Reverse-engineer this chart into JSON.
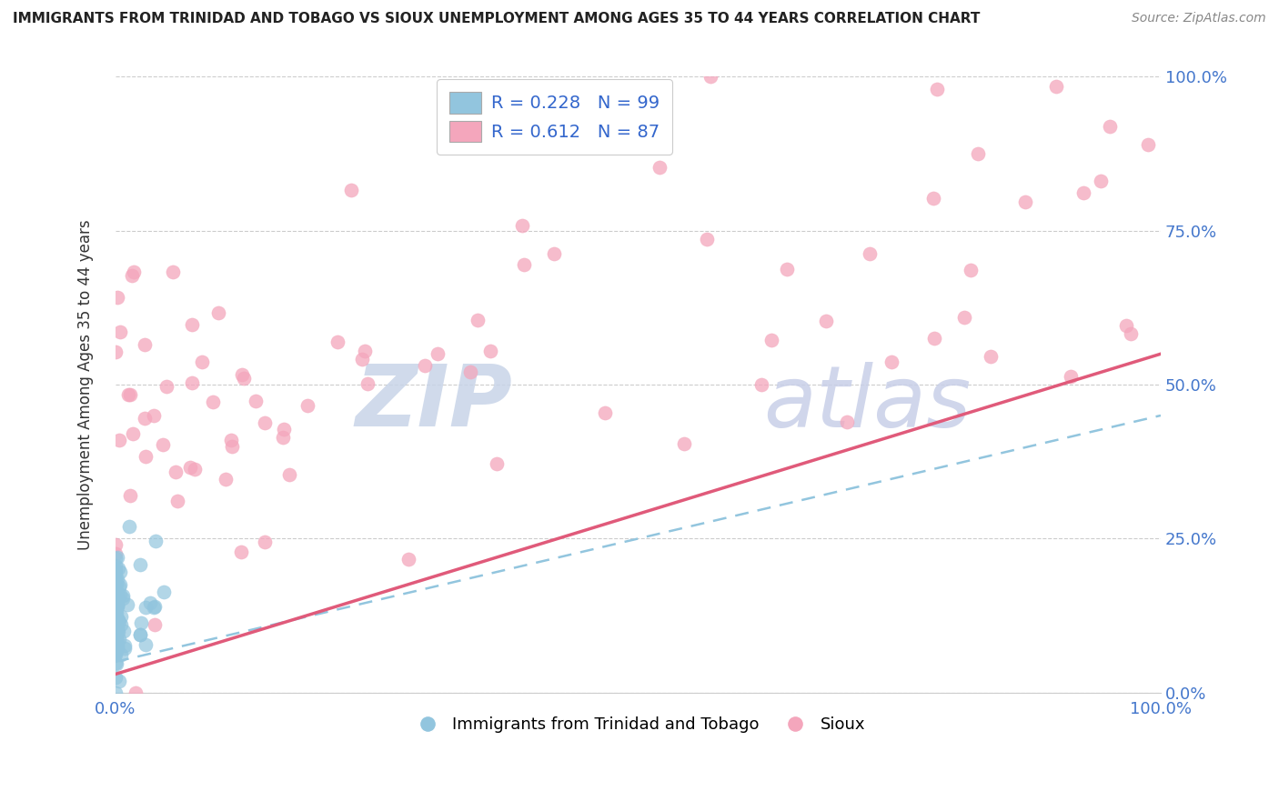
{
  "title": "IMMIGRANTS FROM TRINIDAD AND TOBAGO VS SIOUX UNEMPLOYMENT AMONG AGES 35 TO 44 YEARS CORRELATION CHART",
  "source": "Source: ZipAtlas.com",
  "ylabel": "Unemployment Among Ages 35 to 44 years",
  "legend1_R": "0.228",
  "legend1_N": "99",
  "legend2_R": "0.612",
  "legend2_N": "87",
  "legend_bottom1": "Immigrants from Trinidad and Tobago",
  "legend_bottom2": "Sioux",
  "color_blue": "#92c5de",
  "color_pink": "#f4a6bc",
  "color_blue_line": "#92c5de",
  "color_pink_line": "#e05a7a",
  "background_color": "#ffffff",
  "grid_color": "#cccccc",
  "watermark_zip": "ZIP",
  "watermark_atlas": "atlas",
  "watermark_color": "#d0d8e8",
  "ytick_color": "#4477cc",
  "xtick_left": "0.0%",
  "xtick_right": "100.0%",
  "ytick_labels": [
    "0.0%",
    "25.0%",
    "50.0%",
    "75.0%",
    "100.0%"
  ],
  "ytick_values": [
    0.0,
    0.25,
    0.5,
    0.75,
    1.0
  ]
}
